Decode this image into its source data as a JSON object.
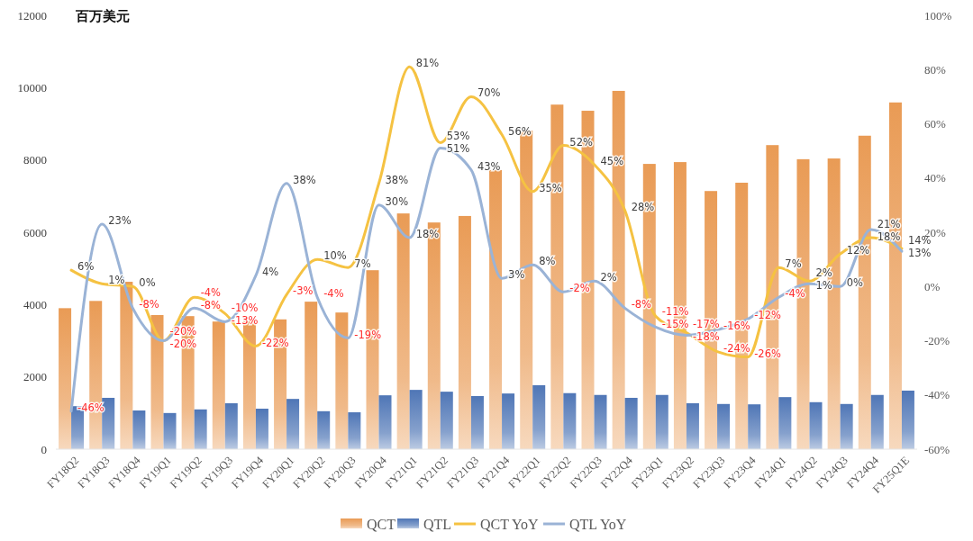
{
  "chart_data": {
    "type": "bar",
    "ylabel": "百万美元",
    "categories": [
      "FY18Q2",
      "FY18Q3",
      "FY18Q4",
      "FY19Q1",
      "FY19Q2",
      "FY19Q3",
      "FY19Q4",
      "FY20Q1",
      "FY20Q2",
      "FY20Q3",
      "FY20Q4",
      "FY21Q1",
      "FY21Q2",
      "FY21Q3",
      "FY21Q4",
      "FY22Q1",
      "FY22Q2",
      "FY22Q3",
      "FY22Q4",
      "FY23Q1",
      "FY23Q2",
      "FY23Q3",
      "FY23Q4",
      "FY24Q1",
      "FY24Q2",
      "FY24Q3",
      "FY24Q4",
      "FY25Q1E"
    ],
    "series": [
      {
        "name": "QCT",
        "color": "#e99b55",
        "values": [
          3900,
          4100,
          4630,
          3710,
          3680,
          3530,
          3550,
          3590,
          4080,
          3780,
          4950,
          6520,
          6270,
          6450,
          7720,
          8810,
          9530,
          9360,
          9910,
          7890,
          7940,
          7140,
          7370,
          8410,
          8020,
          8040,
          8670,
          9590
        ]
      },
      {
        "name": "QTL",
        "color": "#4f76b6",
        "values": [
          1190,
          1420,
          1070,
          1000,
          1100,
          1270,
          1120,
          1390,
          1050,
          1020,
          1490,
          1640,
          1590,
          1470,
          1540,
          1770,
          1550,
          1500,
          1420,
          1500,
          1270,
          1250,
          1240,
          1440,
          1300,
          1250,
          1500,
          1620
        ]
      },
      {
        "name": "QCT YoY",
        "type": "line",
        "axis": "y2",
        "color": "#f5c242",
        "values": [
          6,
          1,
          0,
          -20,
          -4,
          -10,
          -22,
          -3,
          10,
          7,
          38,
          81,
          53,
          70,
          56,
          35,
          52,
          45,
          28,
          -11,
          -17,
          -24,
          -26,
          7,
          2,
          12,
          18,
          14
        ],
        "value_labels": [
          "6%",
          "1%",
          "0%",
          "-20%",
          "-4%",
          "-10%",
          "-22%",
          "-3%",
          "10%",
          "7%",
          "38%",
          "81%",
          "53%",
          "70%",
          "56%",
          "35%",
          "52%",
          "45%",
          "28%",
          "-11%",
          "-17%",
          "-24%",
          "-26%",
          "7%",
          "2%",
          "12%",
          "18%",
          "14%"
        ]
      },
      {
        "name": "QTL YoY",
        "type": "line",
        "axis": "y2",
        "color": "#9ab3d6",
        "values": [
          -46,
          23,
          -8,
          -20,
          -8,
          -13,
          4,
          38,
          -4,
          -19,
          30,
          18,
          51,
          43,
          3,
          8,
          -2,
          2,
          -8,
          -15,
          -18,
          -16,
          -12,
          -4,
          1,
          0,
          21,
          13
        ],
        "value_labels": [
          "-46%",
          "23%",
          "-8%",
          "-20%",
          "-8%",
          "-13%",
          "4%",
          "38%",
          "-4%",
          "-19%",
          "30%",
          "18%",
          "51%",
          "43%",
          "3%",
          "8%",
          "-2%",
          "2%",
          "-8%",
          "-15%",
          "-18%",
          "-16%",
          "-12%",
          "-4%",
          "1%",
          "0%",
          "21%",
          "13%"
        ]
      }
    ],
    "ylim": [
      0,
      12000
    ],
    "yticks": [
      0,
      2000,
      4000,
      6000,
      8000,
      10000,
      12000
    ],
    "y2lim": [
      -60,
      100
    ],
    "y2ticks": [
      {
        "value": -60,
        "label": "-60%"
      },
      {
        "value": -40,
        "label": "-40%"
      },
      {
        "value": -20,
        "label": "-20%"
      },
      {
        "value": 0,
        "label": "0%"
      },
      {
        "value": 20,
        "label": "20%"
      },
      {
        "value": 40,
        "label": "40%"
      },
      {
        "value": 60,
        "label": "60%"
      },
      {
        "value": 80,
        "label": "80%"
      },
      {
        "value": 100,
        "label": "100%"
      }
    ],
    "grid": false,
    "legend": "bottom",
    "marker": "none",
    "line_style": "solid"
  }
}
